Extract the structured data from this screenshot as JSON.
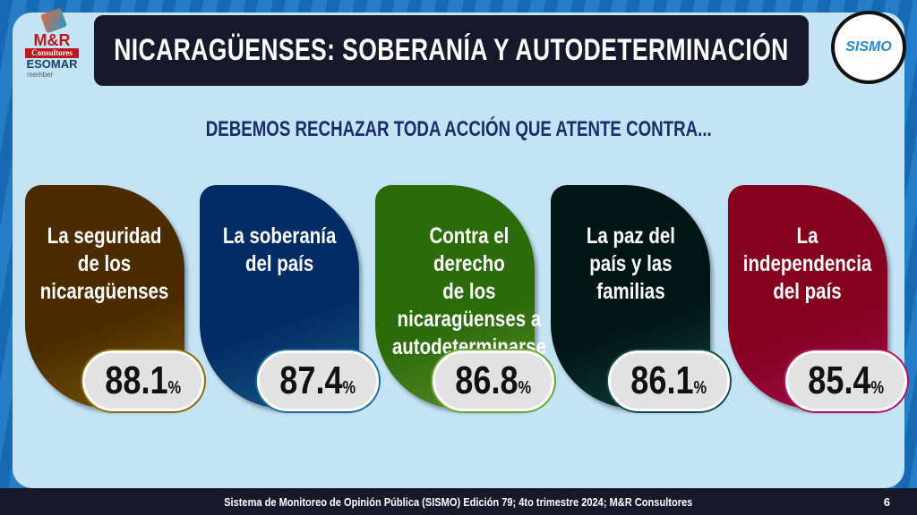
{
  "header": {
    "title": "NICARAGÜENSES: SOBERANÍA Y AUTODETERMINACIÓN"
  },
  "logos": {
    "mr": "M&R",
    "consultores": "Consultores",
    "esomar": "ESOMAR",
    "member": "member",
    "sismo": "SISMO"
  },
  "subtitle": "DEBEMOS RECHAZAR TODA ACCIÓN QUE ATENTE CONTRA...",
  "cards": [
    {
      "label": "La seguridad\nde los\nnicaragüenses",
      "value": "88.1",
      "unit": "%",
      "color": "#8a6a05"
    },
    {
      "label": "La soberanía\ndel país",
      "value": "87.4",
      "unit": "%",
      "color": "#1c6aa0"
    },
    {
      "label": "Contra el derecho\nde los\nnicaragüenses a\nautodeterminarse",
      "value": "86.8",
      "unit": "%",
      "color": "#6aa532"
    },
    {
      "label": "La paz del\npaís y las\nfamilias",
      "value": "86.1",
      "unit": "%",
      "color": "#134a48"
    },
    {
      "label": "La\nindependencia\ndel país",
      "value": "85.4",
      "unit": "%",
      "color": "#b8105a"
    }
  ],
  "footer": {
    "source": "Sistema de Monitoreo de Opinión Pública (SISMO) Edición 79; 4to trimestre 2024; M&R Consultores",
    "page": "6"
  }
}
